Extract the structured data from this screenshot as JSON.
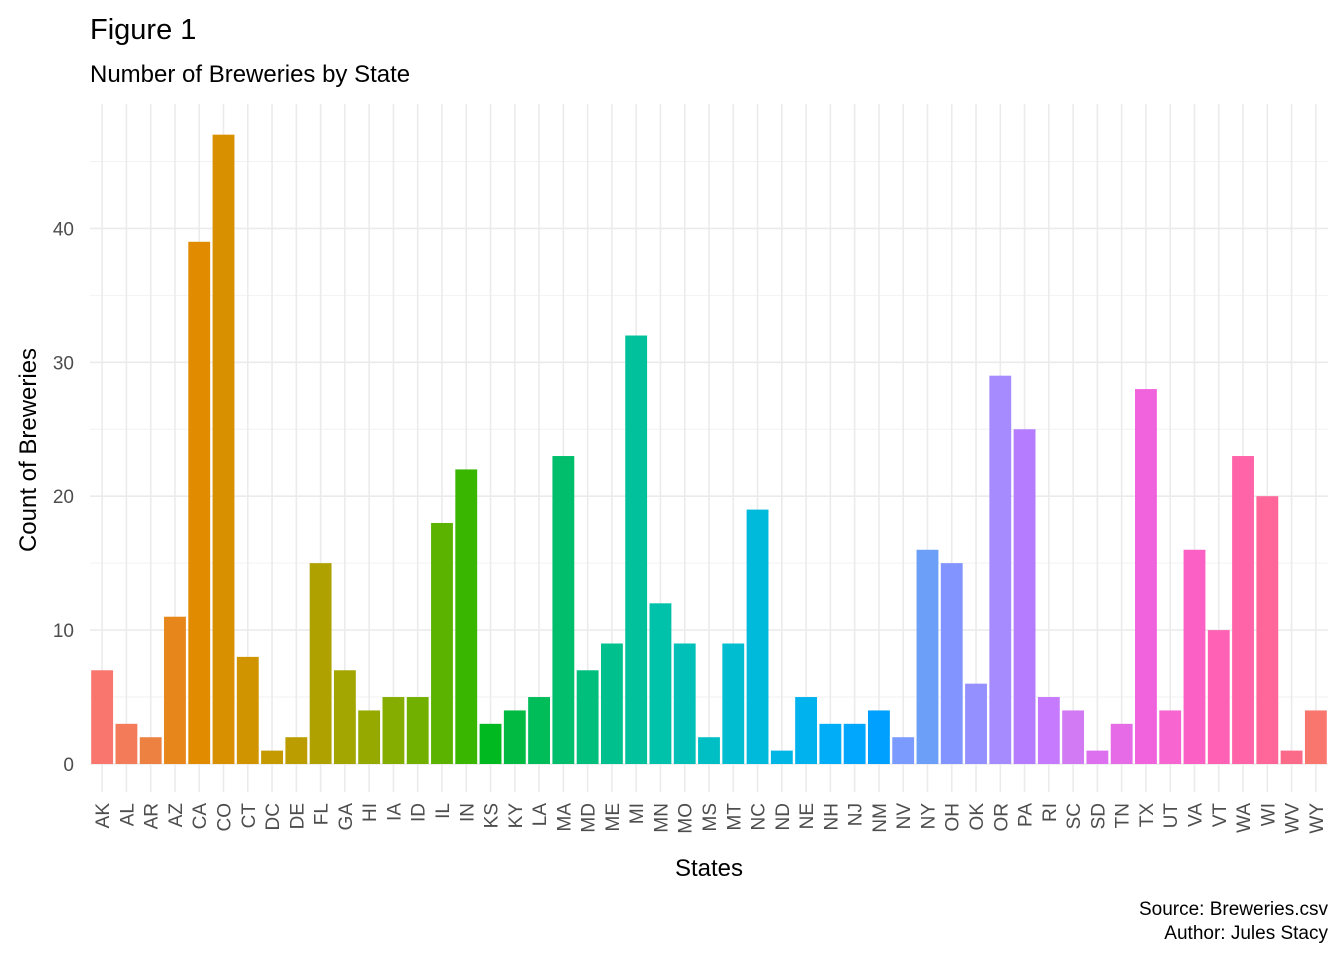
{
  "chart_data": {
    "type": "bar",
    "title": "Figure 1",
    "subtitle": "Number of Breweries by State",
    "xlabel": "States",
    "ylabel": "Count of Breweries",
    "ylim": [
      0,
      48
    ],
    "yticks": [
      0,
      10,
      20,
      30,
      40
    ],
    "grid": true,
    "legend": "none",
    "categories": [
      "AK",
      "AL",
      "AR",
      "AZ",
      "CA",
      "CO",
      "CT",
      "DC",
      "DE",
      "FL",
      "GA",
      "HI",
      "IA",
      "ID",
      "IL",
      "IN",
      "KS",
      "KY",
      "LA",
      "MA",
      "MD",
      "ME",
      "MI",
      "MN",
      "MO",
      "MS",
      "MT",
      "NC",
      "ND",
      "NE",
      "NH",
      "NJ",
      "NM",
      "NV",
      "NY",
      "OH",
      "OK",
      "OR",
      "PA",
      "RI",
      "SC",
      "SD",
      "TN",
      "TX",
      "UT",
      "VA",
      "VT",
      "WA",
      "WI",
      "WV",
      "WY"
    ],
    "values": [
      7,
      3,
      2,
      11,
      39,
      47,
      8,
      1,
      2,
      15,
      7,
      4,
      5,
      5,
      18,
      22,
      3,
      4,
      5,
      23,
      7,
      9,
      32,
      12,
      9,
      2,
      9,
      19,
      1,
      5,
      3,
      3,
      4,
      2,
      16,
      15,
      6,
      29,
      25,
      5,
      4,
      1,
      3,
      28,
      4,
      16,
      10,
      23,
      20,
      1,
      4
    ],
    "colors": [
      "#F8766D",
      "#F37B59",
      "#ED8141",
      "#E7861B",
      "#E08B00",
      "#D89000",
      "#CF9400",
      "#C59900",
      "#BB9D00",
      "#AFA100",
      "#A3A500",
      "#95A900",
      "#85AD00",
      "#72B000",
      "#5BB300",
      "#39B600",
      "#00B81F",
      "#00BA42",
      "#00BC59",
      "#00BE6C",
      "#00BF7D",
      "#00C08D",
      "#00C19C",
      "#00C1AA",
      "#00C0B8",
      "#00BFC4",
      "#00BDD0",
      "#00BADB",
      "#00B6E5",
      "#00B2EE",
      "#00ADF6",
      "#00A7FD",
      "#00A0FF",
      "#7C9BFF",
      "#6B9FF8",
      "#8294FF",
      "#9590FF",
      "#A68BFF",
      "#B57CFF",
      "#C67BFF",
      "#D27AF4",
      "#DC70EE",
      "#E66BE6",
      "#F063DD",
      "#F765D0",
      "#FB61C4",
      "#FF61B5",
      "#FF63A8",
      "#FF6699",
      "#FC6A8A",
      "#F8766D"
    ]
  },
  "caption": {
    "source": "Source: Breweries.csv",
    "author": "Author: Jules Stacy"
  }
}
